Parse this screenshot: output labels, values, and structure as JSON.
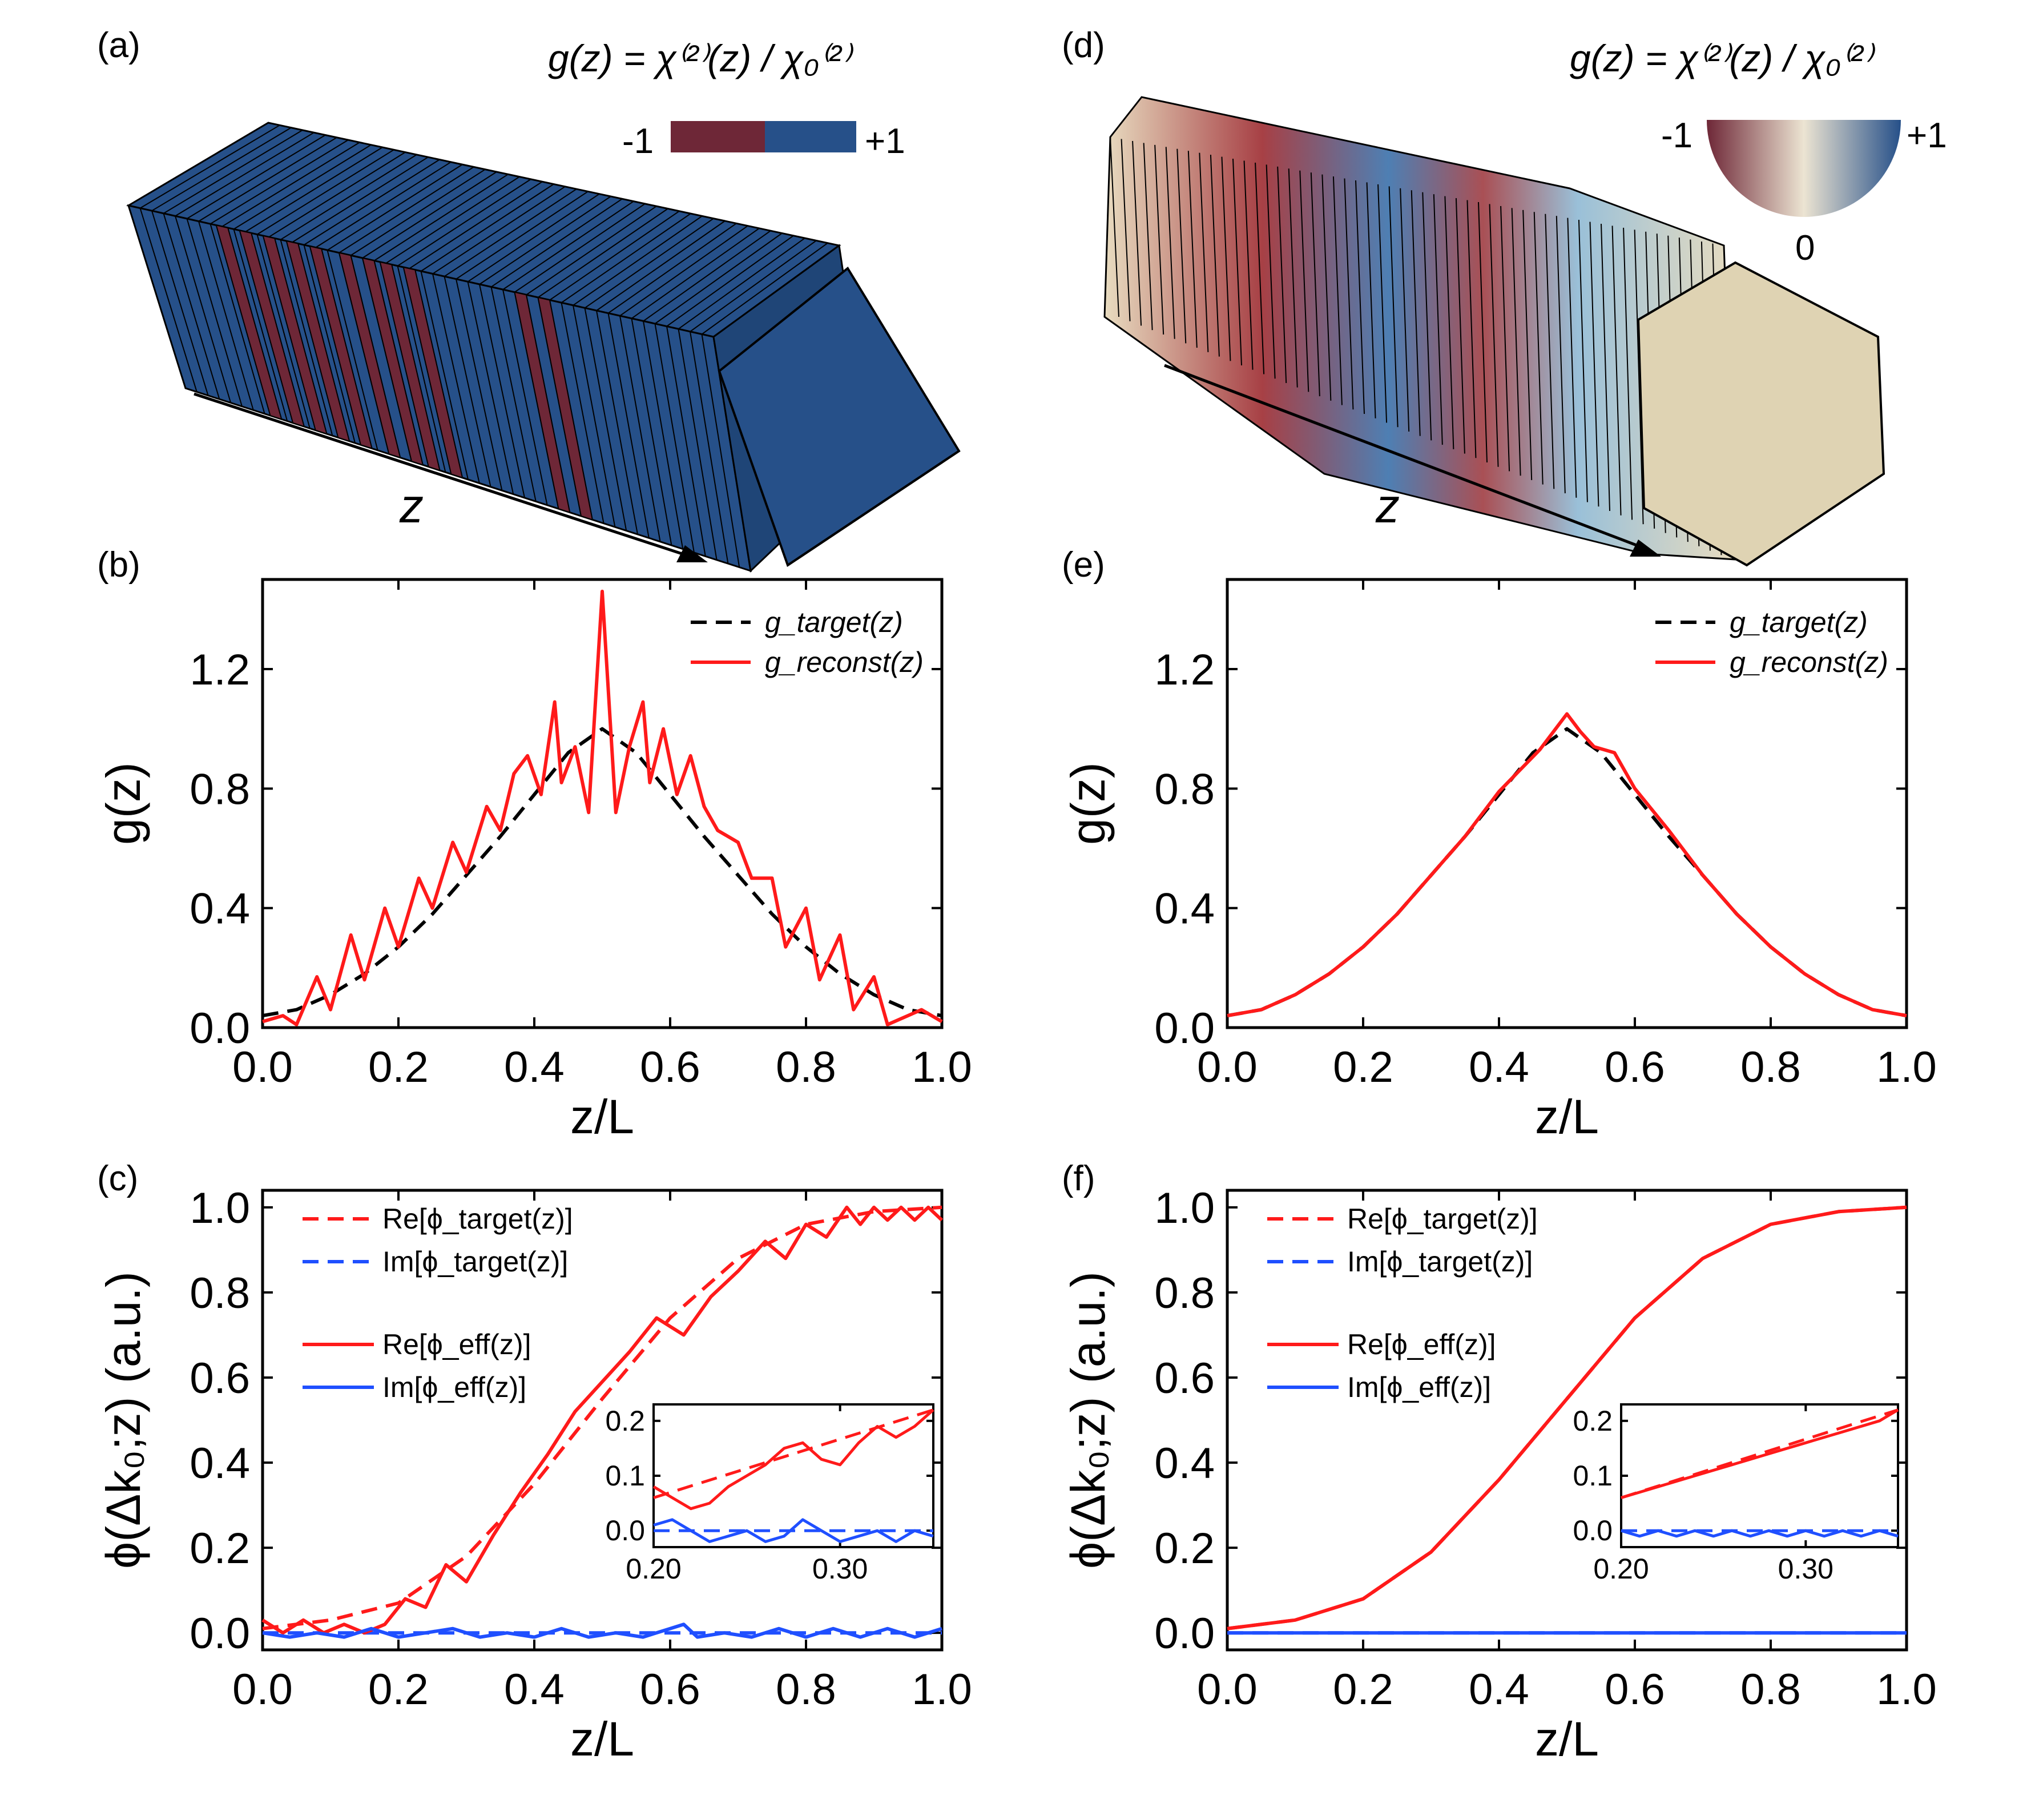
{
  "panels": {
    "a": {
      "label": "(a)",
      "formula": "g(z) = χ⁽²⁾(z) / χ₀⁽²⁾",
      "colorbar": {
        "min_label": "-1",
        "max_label": "+1",
        "colors": [
          "#6e2737",
          "#265089"
        ]
      },
      "axis_label": "z"
    },
    "d": {
      "label": "(d)",
      "formula": "g(z) = χ⁽²⁾(z) / χ₀⁽²⁾",
      "colorbar": {
        "min_label": "-1",
        "max_label": "+1",
        "zero_label": "0",
        "colors": [
          "#6e2737",
          "#e6dcc4",
          "#265089"
        ]
      },
      "axis_label": "z"
    },
    "b": {
      "label": "(b)"
    },
    "c": {
      "label": "(c)"
    },
    "e": {
      "label": "(e)"
    },
    "f": {
      "label": "(f)"
    }
  },
  "colors": {
    "target": "#000000",
    "reconst": "#ff1a1a",
    "re": "#ff1a1a",
    "im": "#1f4fff",
    "blue_domain": "#265089",
    "red_domain": "#6e2737",
    "beige": "#dfd3b3"
  },
  "chart_data": [
    {
      "panel": "b",
      "type": "line",
      "xlabel": "z/L",
      "ylabel": "g(z)",
      "xlim": [
        0,
        1
      ],
      "ylim": [
        0,
        1.5
      ],
      "xticks": [
        "0.0",
        "0.2",
        "0.4",
        "0.6",
        "0.8",
        "1.0"
      ],
      "yticks": [
        "0.0",
        "0.4",
        "0.8",
        "1.2"
      ],
      "series": [
        {
          "name": "g_target(z)",
          "style": "dashed",
          "color": "#000000",
          "x": [
            0,
            0.05,
            0.1,
            0.15,
            0.2,
            0.25,
            0.3,
            0.35,
            0.4,
            0.45,
            0.5,
            0.55,
            0.6,
            0.65,
            0.7,
            0.75,
            0.8,
            0.85,
            0.9,
            0.95,
            1.0
          ],
          "y": [
            0.04,
            0.06,
            0.11,
            0.18,
            0.27,
            0.38,
            0.51,
            0.64,
            0.78,
            0.92,
            1.0,
            0.92,
            0.78,
            0.64,
            0.51,
            0.38,
            0.27,
            0.18,
            0.11,
            0.06,
            0.04
          ]
        },
        {
          "name": "g_reconst(z)",
          "style": "solid",
          "color": "#ff1a1a",
          "x": [
            0.0,
            0.03,
            0.05,
            0.08,
            0.1,
            0.13,
            0.15,
            0.18,
            0.2,
            0.23,
            0.25,
            0.28,
            0.3,
            0.33,
            0.35,
            0.37,
            0.39,
            0.41,
            0.43,
            0.44,
            0.46,
            0.48,
            0.5,
            0.52,
            0.54,
            0.56,
            0.57,
            0.59,
            0.61,
            0.63,
            0.65,
            0.67,
            0.7,
            0.72,
            0.75,
            0.77,
            0.8,
            0.82,
            0.85,
            0.87,
            0.9,
            0.92,
            0.95,
            0.97,
            1.0
          ],
          "y": [
            0.02,
            0.04,
            0.01,
            0.17,
            0.06,
            0.31,
            0.16,
            0.4,
            0.27,
            0.5,
            0.4,
            0.62,
            0.52,
            0.74,
            0.66,
            0.85,
            0.91,
            0.78,
            1.09,
            0.82,
            0.94,
            0.72,
            1.46,
            0.72,
            0.94,
            1.09,
            0.82,
            1.0,
            0.78,
            0.91,
            0.74,
            0.66,
            0.62,
            0.5,
            0.5,
            0.27,
            0.4,
            0.16,
            0.31,
            0.06,
            0.17,
            0.01,
            0.04,
            0.06,
            0.02
          ]
        }
      ],
      "legend": "top-right"
    },
    {
      "panel": "c",
      "type": "line",
      "xlabel": "z/L",
      "ylabel": "ϕ(Δk₀;z) (a.u.)",
      "xlim": [
        0,
        1
      ],
      "ylim": [
        -0.04,
        1.04
      ],
      "xticks": [
        "0.0",
        "0.2",
        "0.4",
        "0.6",
        "0.8",
        "1.0"
      ],
      "yticks": [
        "0.0",
        "0.2",
        "0.4",
        "0.6",
        "0.8",
        "1.0"
      ],
      "series": [
        {
          "name": "Re[ϕ_target(z)]",
          "style": "dashed",
          "color": "#ff1a1a",
          "x": [
            0,
            0.1,
            0.2,
            0.3,
            0.4,
            0.5,
            0.6,
            0.7,
            0.8,
            0.9,
            1.0
          ],
          "y": [
            0.01,
            0.03,
            0.07,
            0.18,
            0.35,
            0.55,
            0.74,
            0.88,
            0.96,
            0.99,
            1.0
          ]
        },
        {
          "name": "Im[ϕ_target(z)]",
          "style": "dashed",
          "color": "#1f4fff",
          "x": [
            0,
            1.0
          ],
          "y": [
            0.0,
            0.0
          ]
        },
        {
          "name": "Re[ϕ_eff(z)]",
          "style": "solid",
          "color": "#ff1a1a",
          "x": [
            0.0,
            0.03,
            0.06,
            0.09,
            0.12,
            0.15,
            0.18,
            0.21,
            0.24,
            0.27,
            0.3,
            0.34,
            0.38,
            0.42,
            0.46,
            0.5,
            0.54,
            0.58,
            0.62,
            0.66,
            0.7,
            0.74,
            0.77,
            0.8,
            0.83,
            0.86,
            0.88,
            0.9,
            0.92,
            0.94,
            0.96,
            0.98,
            1.0
          ],
          "y": [
            0.03,
            0.0,
            0.03,
            0.0,
            0.02,
            0.0,
            0.02,
            0.08,
            0.06,
            0.16,
            0.12,
            0.23,
            0.33,
            0.42,
            0.52,
            0.59,
            0.66,
            0.74,
            0.7,
            0.79,
            0.85,
            0.92,
            0.88,
            0.96,
            0.93,
            1.0,
            0.96,
            1.0,
            0.97,
            1.0,
            0.97,
            1.0,
            0.97
          ]
        },
        {
          "name": "Im[ϕ_eff(z)]",
          "style": "solid",
          "color": "#1f4fff",
          "x": [
            0.0,
            0.04,
            0.08,
            0.12,
            0.16,
            0.2,
            0.24,
            0.28,
            0.32,
            0.36,
            0.4,
            0.44,
            0.48,
            0.52,
            0.56,
            0.6,
            0.62,
            0.64,
            0.68,
            0.72,
            0.76,
            0.8,
            0.84,
            0.88,
            0.92,
            0.96,
            1.0
          ],
          "y": [
            0.0,
            -0.01,
            0.0,
            -0.01,
            0.01,
            -0.01,
            0.0,
            0.01,
            -0.01,
            0.0,
            -0.01,
            0.01,
            -0.01,
            0.0,
            -0.01,
            0.01,
            0.02,
            -0.01,
            0.0,
            -0.01,
            0.01,
            -0.01,
            0.01,
            -0.01,
            0.01,
            -0.01,
            0.01
          ]
        }
      ],
      "legend": "top-left",
      "inset": {
        "xlim": [
          0.2,
          0.35
        ],
        "ylim": [
          -0.03,
          0.23
        ],
        "xticks": [
          "0.20",
          "0.30"
        ],
        "yticks": [
          "0.0",
          "0.1",
          "0.2"
        ],
        "series": [
          {
            "name": "Re[ϕ_target(z)]",
            "style": "dashed",
            "color": "#ff1a1a",
            "x": [
              0.2,
              0.35
            ],
            "y": [
              0.06,
              0.22
            ]
          },
          {
            "name": "Im[ϕ_target(z)]",
            "style": "dashed",
            "color": "#1f4fff",
            "x": [
              0.2,
              0.35
            ],
            "y": [
              0.0,
              0.0
            ]
          },
          {
            "name": "Re[ϕ_eff(z)]",
            "style": "solid",
            "color": "#ff1a1a",
            "x": [
              0.2,
              0.21,
              0.22,
              0.23,
              0.24,
              0.25,
              0.26,
              0.27,
              0.28,
              0.29,
              0.3,
              0.31,
              0.32,
              0.33,
              0.34,
              0.35
            ],
            "y": [
              0.08,
              0.06,
              0.04,
              0.05,
              0.08,
              0.1,
              0.12,
              0.15,
              0.16,
              0.13,
              0.12,
              0.16,
              0.19,
              0.17,
              0.19,
              0.22
            ]
          },
          {
            "name": "Im[ϕ_eff(z)]",
            "style": "solid",
            "color": "#1f4fff",
            "x": [
              0.2,
              0.21,
              0.22,
              0.23,
              0.24,
              0.25,
              0.26,
              0.27,
              0.28,
              0.29,
              0.3,
              0.31,
              0.32,
              0.33,
              0.34,
              0.35
            ],
            "y": [
              0.01,
              0.02,
              0.0,
              -0.02,
              -0.01,
              0.0,
              -0.02,
              -0.01,
              0.02,
              0.0,
              -0.02,
              -0.01,
              0.0,
              -0.02,
              0.0,
              -0.01
            ]
          }
        ]
      }
    },
    {
      "panel": "e",
      "type": "line",
      "xlabel": "z/L",
      "ylabel": "g(z)",
      "xlim": [
        0,
        1
      ],
      "ylim": [
        0,
        1.5
      ],
      "xticks": [
        "0.0",
        "0.2",
        "0.4",
        "0.6",
        "0.8",
        "1.0"
      ],
      "yticks": [
        "0.0",
        "0.4",
        "0.8",
        "1.2"
      ],
      "series": [
        {
          "name": "g_target(z)",
          "style": "dashed",
          "color": "#000000",
          "x": [
            0,
            0.05,
            0.1,
            0.15,
            0.2,
            0.25,
            0.3,
            0.35,
            0.4,
            0.45,
            0.5,
            0.55,
            0.6,
            0.65,
            0.7,
            0.75,
            0.8,
            0.85,
            0.9,
            0.95,
            1.0
          ],
          "y": [
            0.04,
            0.06,
            0.11,
            0.18,
            0.27,
            0.38,
            0.51,
            0.64,
            0.78,
            0.92,
            1.0,
            0.92,
            0.78,
            0.64,
            0.51,
            0.38,
            0.27,
            0.18,
            0.11,
            0.06,
            0.04
          ]
        },
        {
          "name": "g_reconst(z)",
          "style": "solid",
          "color": "#ff1a1a",
          "x": [
            0,
            0.05,
            0.1,
            0.15,
            0.2,
            0.25,
            0.3,
            0.35,
            0.4,
            0.43,
            0.46,
            0.48,
            0.5,
            0.52,
            0.54,
            0.57,
            0.6,
            0.65,
            0.7,
            0.75,
            0.8,
            0.85,
            0.9,
            0.95,
            1.0
          ],
          "y": [
            0.04,
            0.06,
            0.11,
            0.18,
            0.27,
            0.38,
            0.51,
            0.64,
            0.79,
            0.86,
            0.93,
            0.99,
            1.05,
            0.99,
            0.94,
            0.92,
            0.8,
            0.66,
            0.51,
            0.38,
            0.27,
            0.18,
            0.11,
            0.06,
            0.04
          ]
        }
      ],
      "legend": "top-right"
    },
    {
      "panel": "f",
      "type": "line",
      "xlabel": "z/L",
      "ylabel": "ϕ(Δk₀;z) (a.u.)",
      "xlim": [
        0,
        1
      ],
      "ylim": [
        -0.04,
        1.04
      ],
      "xticks": [
        "0.0",
        "0.2",
        "0.4",
        "0.6",
        "0.8",
        "1.0"
      ],
      "yticks": [
        "0.0",
        "0.2",
        "0.4",
        "0.6",
        "0.8",
        "1.0"
      ],
      "series": [
        {
          "name": "Re[ϕ_target(z)]",
          "style": "dashed",
          "color": "#ff1a1a",
          "x": [
            0,
            0.1,
            0.2,
            0.3,
            0.4,
            0.5,
            0.6,
            0.7,
            0.8,
            0.9,
            1.0
          ],
          "y": [
            0.01,
            0.03,
            0.08,
            0.19,
            0.36,
            0.55,
            0.74,
            0.88,
            0.96,
            0.99,
            1.0
          ]
        },
        {
          "name": "Im[ϕ_target(z)]",
          "style": "dashed",
          "color": "#1f4fff",
          "x": [
            0,
            1.0
          ],
          "y": [
            0.0,
            0.0
          ]
        },
        {
          "name": "Re[ϕ_eff(z)]",
          "style": "solid",
          "color": "#ff1a1a",
          "x": [
            0,
            0.1,
            0.2,
            0.3,
            0.4,
            0.5,
            0.6,
            0.7,
            0.8,
            0.9,
            1.0
          ],
          "y": [
            0.01,
            0.03,
            0.08,
            0.19,
            0.36,
            0.55,
            0.74,
            0.88,
            0.96,
            0.99,
            1.0
          ]
        },
        {
          "name": "Im[ϕ_eff(z)]",
          "style": "solid",
          "color": "#1f4fff",
          "x": [
            0,
            0.1,
            0.2,
            0.3,
            0.4,
            0.5,
            0.6,
            0.7,
            0.8,
            0.9,
            1.0
          ],
          "y": [
            0.0,
            0.0,
            0.0,
            0.0,
            0.0,
            0.0,
            0.0,
            0.0,
            0.0,
            0.0,
            0.0
          ]
        }
      ],
      "legend": "top-left",
      "inset": {
        "xlim": [
          0.2,
          0.35
        ],
        "ylim": [
          -0.03,
          0.23
        ],
        "xticks": [
          "0.20",
          "0.30"
        ],
        "yticks": [
          "0.0",
          "0.1",
          "0.2"
        ],
        "series": [
          {
            "name": "Re[ϕ_target(z)]",
            "style": "dashed",
            "color": "#ff1a1a",
            "x": [
              0.2,
              0.35
            ],
            "y": [
              0.06,
              0.22
            ]
          },
          {
            "name": "Im[ϕ_target(z)]",
            "style": "dashed",
            "color": "#1f4fff",
            "x": [
              0.2,
              0.35
            ],
            "y": [
              0.0,
              0.0
            ]
          },
          {
            "name": "Re[ϕ_eff(z)]",
            "style": "solid",
            "color": "#ff1a1a",
            "x": [
              0.2,
              0.22,
              0.24,
              0.26,
              0.28,
              0.3,
              0.32,
              0.34,
              0.35
            ],
            "y": [
              0.06,
              0.08,
              0.1,
              0.12,
              0.14,
              0.16,
              0.18,
              0.2,
              0.22
            ]
          },
          {
            "name": "Im[ϕ_eff(z)]",
            "style": "solid",
            "color": "#1f4fff",
            "x": [
              0.2,
              0.21,
              0.22,
              0.23,
              0.24,
              0.25,
              0.26,
              0.27,
              0.28,
              0.29,
              0.3,
              0.31,
              0.32,
              0.33,
              0.34,
              0.35
            ],
            "y": [
              0.0,
              -0.01,
              0.0,
              -0.01,
              0.0,
              -0.01,
              0.0,
              -0.01,
              0.0,
              -0.01,
              0.0,
              -0.01,
              0.0,
              -0.01,
              0.0,
              -0.01
            ]
          }
        ]
      }
    }
  ]
}
